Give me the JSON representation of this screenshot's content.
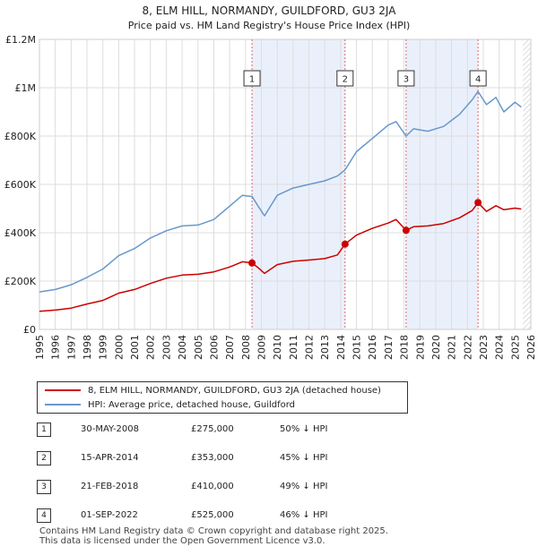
{
  "chart_data": {
    "type": "line",
    "title": "8, ELM HILL, NORMANDY, GUILDFORD, GU3 2JA",
    "subtitle": "Price paid vs. HM Land Registry's House Price Index (HPI)",
    "xlim": [
      1995,
      2026
    ],
    "ylim": [
      0,
      1200000
    ],
    "x_ticks": [
      1995,
      1996,
      1997,
      1998,
      1999,
      2000,
      2001,
      2002,
      2003,
      2004,
      2005,
      2006,
      2007,
      2008,
      2009,
      2010,
      2011,
      2012,
      2013,
      2014,
      2015,
      2016,
      2017,
      2018,
      2019,
      2020,
      2021,
      2022,
      2023,
      2024,
      2025,
      2026
    ],
    "x_tick_labels": [
      "1995",
      "1996",
      "1997",
      "1998",
      "1999",
      "2000",
      "2001",
      "2002",
      "2003",
      "2004",
      "2005",
      "2006",
      "2007",
      "2008",
      "2009",
      "2010",
      "2011",
      "2012",
      "2013",
      "2014",
      "2015",
      "2016",
      "2017",
      "2018",
      "2019",
      "2020",
      "2021",
      "2022",
      "2023",
      "2024",
      "2025",
      "2026"
    ],
    "y_ticks": [
      0,
      200000,
      400000,
      600000,
      800000,
      1000000,
      1200000
    ],
    "y_tick_labels": [
      "£0",
      "£200K",
      "£400K",
      "£600K",
      "£800K",
      "£1M",
      "£1.2M"
    ],
    "series": [
      {
        "name": "8, ELM HILL, NORMANDY, GUILDFORD, GU3 2JA (detached house)",
        "color": "#cc0000",
        "x": [
          1995.0,
          1996.0,
          1997.0,
          1998.0,
          1999.0,
          2000.0,
          2001.0,
          2002.0,
          2003.0,
          2004.0,
          2005.0,
          2006.0,
          2007.0,
          2007.8,
          2008.41,
          2008.8,
          2009.2,
          2010.0,
          2011.0,
          2012.0,
          2013.0,
          2013.8,
          2014.28,
          2015.0,
          2016.0,
          2017.0,
          2017.5,
          2018.13,
          2018.6,
          2019.5,
          2020.5,
          2021.5,
          2022.3,
          2022.67,
          2023.2,
          2023.8,
          2024.3,
          2025.0,
          2025.4
        ],
        "values": [
          75000,
          80000,
          88000,
          105000,
          120000,
          150000,
          165000,
          190000,
          212000,
          225000,
          228000,
          238000,
          258000,
          280000,
          275000,
          255000,
          232000,
          268000,
          282000,
          287000,
          293000,
          308000,
          353000,
          390000,
          418000,
          440000,
          455000,
          410000,
          425000,
          428000,
          438000,
          462000,
          492000,
          525000,
          488000,
          512000,
          495000,
          502000,
          498000
        ]
      },
      {
        "name": "HPI: Average price, detached house, Guildford",
        "color": "#6699cc",
        "x": [
          1995.0,
          1996.0,
          1997.0,
          1998.0,
          1999.0,
          2000.0,
          2001.0,
          2002.0,
          2003.0,
          2004.0,
          2005.0,
          2006.0,
          2007.0,
          2007.8,
          2008.41,
          2008.8,
          2009.2,
          2010.0,
          2011.0,
          2012.0,
          2013.0,
          2013.8,
          2014.28,
          2015.0,
          2016.0,
          2017.0,
          2017.5,
          2018.13,
          2018.6,
          2019.5,
          2020.5,
          2021.5,
          2022.3,
          2022.67,
          2023.2,
          2023.8,
          2024.3,
          2025.0,
          2025.4
        ],
        "values": [
          155000,
          165000,
          185000,
          215000,
          250000,
          305000,
          335000,
          378000,
          408000,
          428000,
          432000,
          455000,
          510000,
          555000,
          550000,
          510000,
          470000,
          555000,
          585000,
          600000,
          615000,
          635000,
          660000,
          735000,
          790000,
          845000,
          860000,
          800000,
          830000,
          820000,
          840000,
          890000,
          950000,
          985000,
          930000,
          960000,
          900000,
          940000,
          920000
        ]
      }
    ],
    "transactions": [
      {
        "label": "1",
        "x": 2008.41,
        "value": 275000
      },
      {
        "label": "2",
        "x": 2014.28,
        "value": 353000
      },
      {
        "label": "3",
        "x": 2018.13,
        "value": 410000
      },
      {
        "label": "4",
        "x": 2022.67,
        "value": 525000
      }
    ]
  },
  "legend": {
    "entry_property": "8, ELM HILL, NORMANDY, GUILDFORD, GU3 2JA (detached house)",
    "entry_hpi": "HPI: Average price, detached house, Guildford"
  },
  "sales": [
    {
      "num": "1",
      "date": "30-MAY-2008",
      "price": "£275,000",
      "hpi": "50% ↓ HPI"
    },
    {
      "num": "2",
      "date": "15-APR-2014",
      "price": "£353,000",
      "hpi": "45% ↓ HPI"
    },
    {
      "num": "3",
      "date": "21-FEB-2018",
      "price": "£410,000",
      "hpi": "49% ↓ HPI"
    },
    {
      "num": "4",
      "date": "01-SEP-2022",
      "price": "£525,000",
      "hpi": "46% ↓ HPI"
    }
  ],
  "footer": {
    "line1": "Contains HM Land Registry data © Crown copyright and database right 2025.",
    "line2": "This data is licensed under the Open Government Licence v3.0."
  },
  "colors": {
    "property_line": "#cc0000",
    "hpi_line": "#6699cc",
    "highlight_band": "#eaf0fb",
    "vline": "#e06666"
  }
}
